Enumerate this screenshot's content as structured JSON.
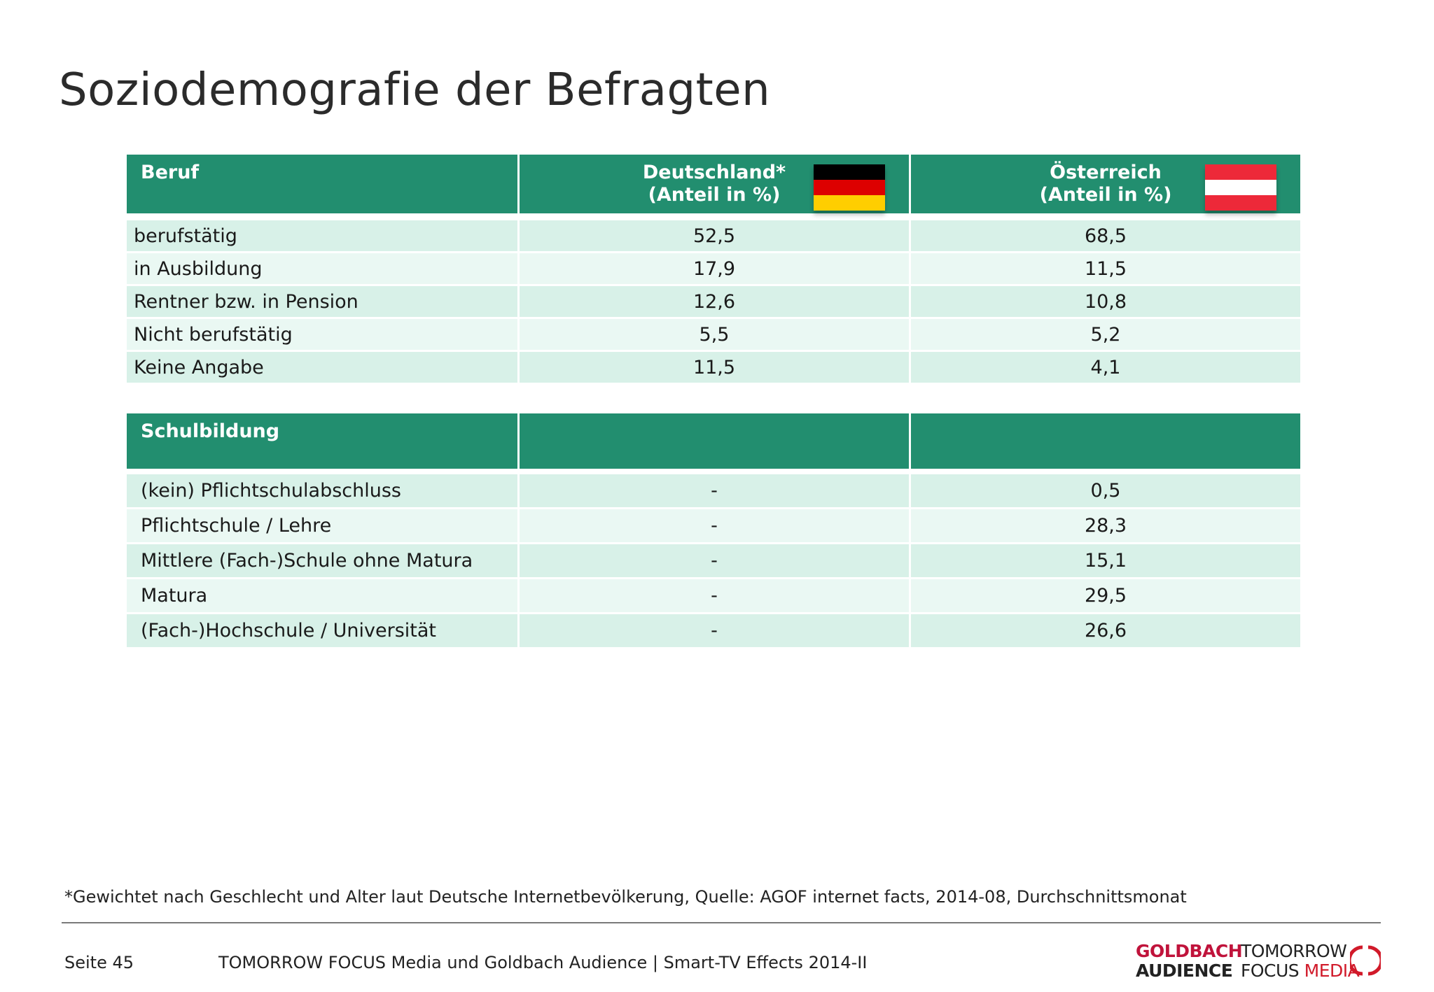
{
  "page": {
    "title": "Soziodemografie der Befragten",
    "footnote": "*Gewichtet nach Geschlecht und Alter laut Deutsche Internetbevölkerung, Quelle: AGOF internet facts, 2014-08, Durchschnittsmonat",
    "page_label": "Seite 45",
    "doc_title": "TOMORROW FOCUS Media und Goldbach Audience | Smart-TV Effects 2014-II"
  },
  "table_beruf": {
    "header": {
      "col1": "Beruf",
      "col2_line1": "Deutschland*",
      "col2_line2": "(Anteil in %)",
      "col3_line1": "Österreich",
      "col3_line2": "(Anteil in %)"
    },
    "rows": [
      {
        "label": "berufstätig",
        "de": "52,5",
        "at": "68,5"
      },
      {
        "label": "in Ausbildung",
        "de": "17,9",
        "at": "11,5"
      },
      {
        "label": "Rentner bzw. in Pension",
        "de": "12,6",
        "at": "10,8"
      },
      {
        "label": "Nicht berufstätig",
        "de": "5,5",
        "at": "5,2"
      },
      {
        "label": "Keine Angabe",
        "de": "11,5",
        "at": "4,1"
      }
    ]
  },
  "table_schulbildung": {
    "header": {
      "col1": "Schulbildung",
      "col2": "",
      "col3": ""
    },
    "rows": [
      {
        "label": "(kein) Pflichtschulabschluss",
        "de": "-",
        "at": "0,5"
      },
      {
        "label": "Pflichtschule / Lehre",
        "de": "-",
        "at": "28,3"
      },
      {
        "label": "Mittlere (Fach-)Schule ohne Matura",
        "de": "-",
        "at": "15,1"
      },
      {
        "label": "Matura",
        "de": "-",
        "at": "29,5"
      },
      {
        "label": "(Fach-)Hochschule / Universität",
        "de": "-",
        "at": "26,6"
      }
    ]
  },
  "flags": {
    "germany": {
      "icon": "flag-germany-icon",
      "colors": [
        "#000000",
        "#dd0000",
        "#ffce00"
      ]
    },
    "austria": {
      "icon": "flag-austria-icon",
      "colors": [
        "#ed2939",
        "#ffffff",
        "#ed2939"
      ]
    }
  },
  "logos": {
    "goldbach_line1": "GOLDBACH",
    "goldbach_line2": "AUDIENCE",
    "tfm_line1": "TOMORROW",
    "tfm_line2a": "FOCUS",
    "tfm_line2b": "MEDIA",
    "colors": {
      "red": "#c0133b",
      "dark": "#222222",
      "tfm_red": "#d11a2a"
    }
  },
  "colors": {
    "header_green": "#228e6f",
    "row_odd": "#d8f1e8",
    "row_even": "#eaf8f3"
  }
}
